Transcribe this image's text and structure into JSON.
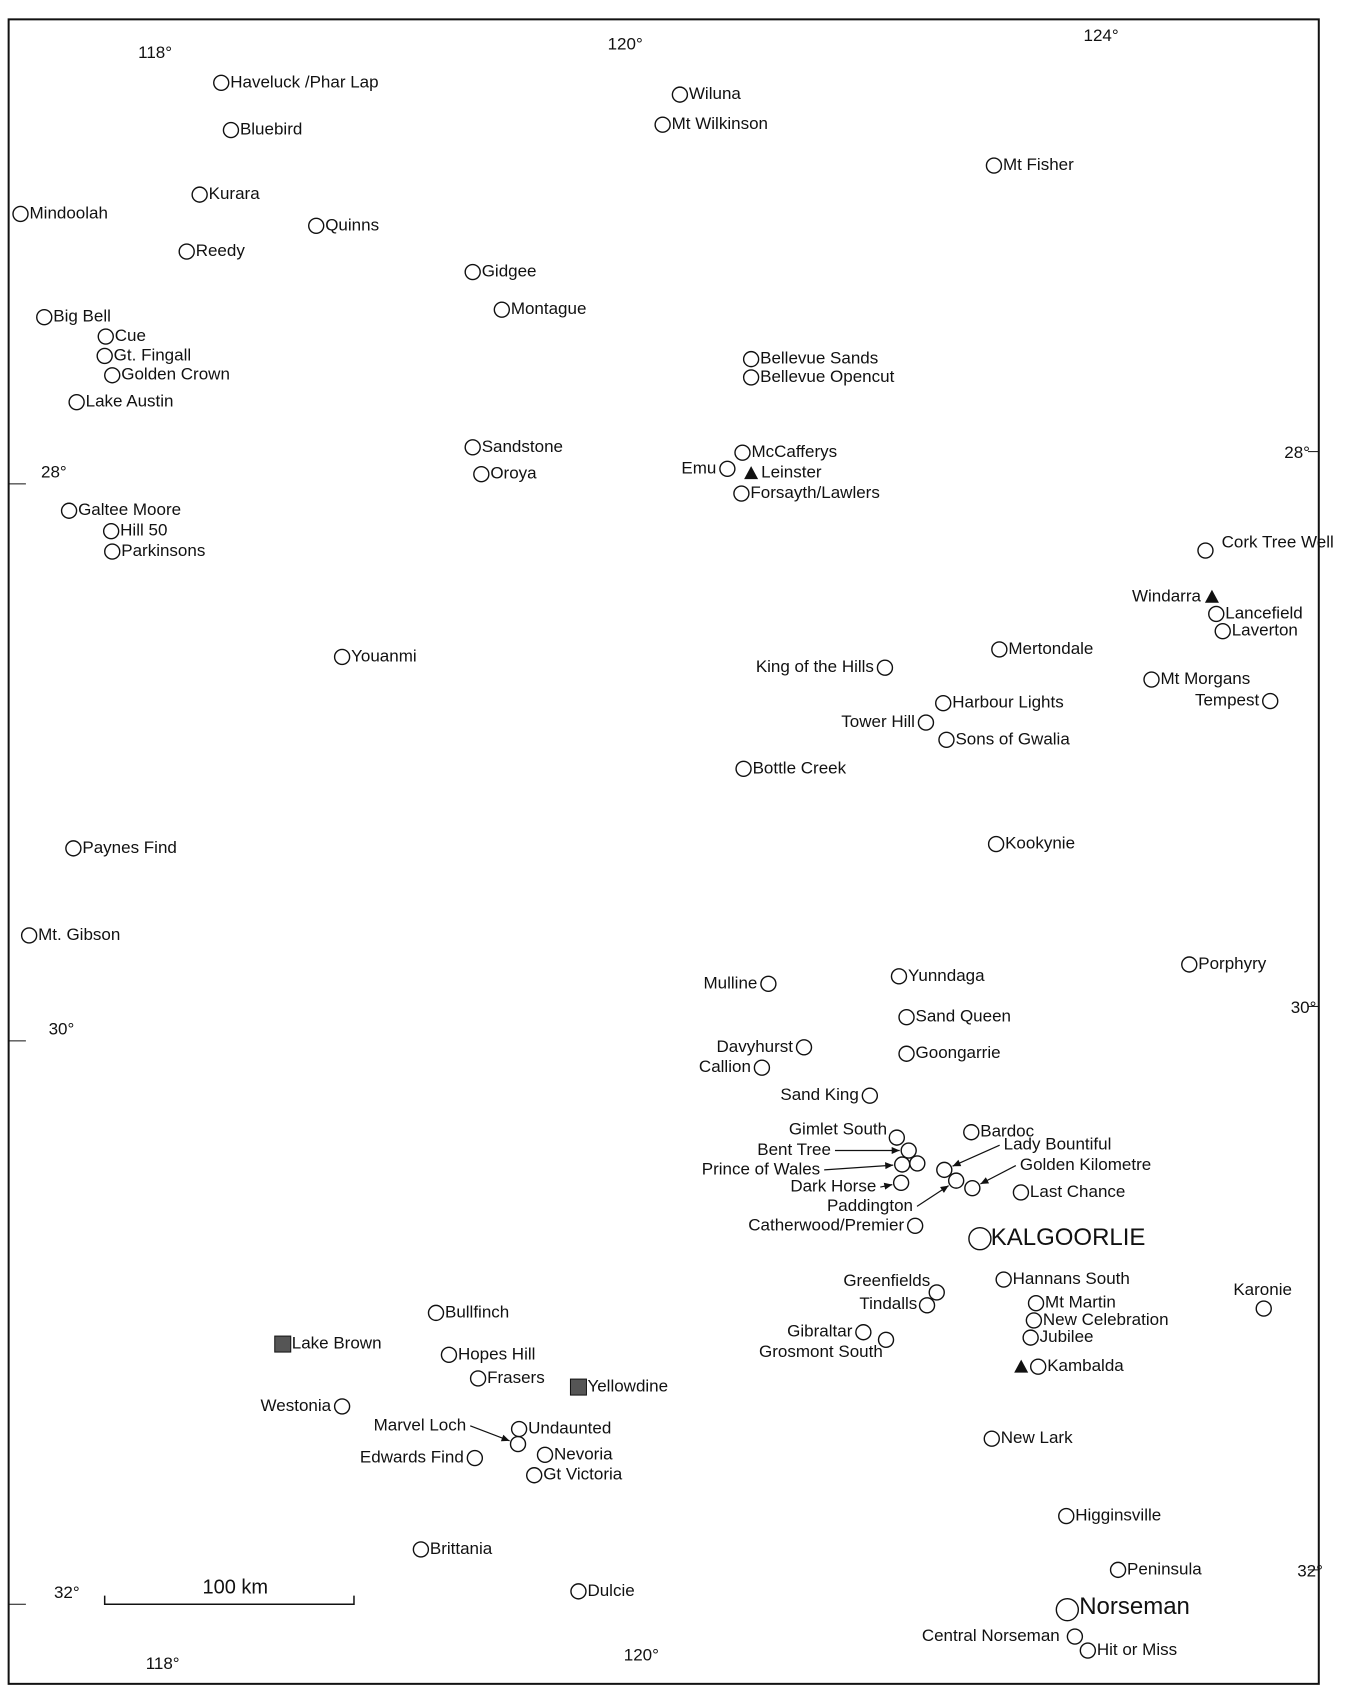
{
  "map": {
    "graticule_labels": [
      "118°",
      "120°",
      "124°",
      "28°",
      "28°",
      "30°",
      "30°",
      "32°",
      "32°",
      "118°",
      "120°"
    ],
    "scale_bar": "100 km",
    "places": [
      {
        "name": "Haveluck /Phar Lap"
      },
      {
        "name": "Bluebird"
      },
      {
        "name": "Kurara"
      },
      {
        "name": "Mindoolah"
      },
      {
        "name": "Quinns"
      },
      {
        "name": "Reedy"
      },
      {
        "name": "Gidgee"
      },
      {
        "name": "Montague"
      },
      {
        "name": "Big Bell"
      },
      {
        "name": "Cue"
      },
      {
        "name": "Gt. Fingall"
      },
      {
        "name": "Golden Crown"
      },
      {
        "name": "Lake Austin"
      },
      {
        "name": "Wiluna"
      },
      {
        "name": "Mt Wilkinson"
      },
      {
        "name": "Mt Fisher"
      },
      {
        "name": "Bellevue Sands"
      },
      {
        "name": "Bellevue Opencut"
      },
      {
        "name": "Sandstone"
      },
      {
        "name": "Oroya"
      },
      {
        "name": "McCafferys"
      },
      {
        "name": "Emu"
      },
      {
        "name": "Leinster"
      },
      {
        "name": "Forsayth/Lawlers"
      },
      {
        "name": "Galtee Moore"
      },
      {
        "name": "Hill 50"
      },
      {
        "name": "Parkinsons"
      },
      {
        "name": "Cork Tree Well"
      },
      {
        "name": "Windarra"
      },
      {
        "name": "Lancefield"
      },
      {
        "name": "Laverton"
      },
      {
        "name": "Youanmi"
      },
      {
        "name": "Mertondale"
      },
      {
        "name": "King of the Hills"
      },
      {
        "name": "Mt Morgans"
      },
      {
        "name": "Harbour Lights"
      },
      {
        "name": "Tempest"
      },
      {
        "name": "Tower Hill"
      },
      {
        "name": "Sons of Gwalia"
      },
      {
        "name": "Bottle Creek"
      },
      {
        "name": "Kookynie"
      },
      {
        "name": "Paynes Find"
      },
      {
        "name": "Mt. Gibson"
      },
      {
        "name": "Porphyry"
      },
      {
        "name": "Mulline"
      },
      {
        "name": "Yunndaga"
      },
      {
        "name": "Sand Queen"
      },
      {
        "name": "Davyhurst"
      },
      {
        "name": "Goongarrie"
      },
      {
        "name": "Callion"
      },
      {
        "name": "Sand King"
      },
      {
        "name": "Gimlet South"
      },
      {
        "name": "Bardoc"
      },
      {
        "name": "Bent Tree"
      },
      {
        "name": "Lady Bountiful"
      },
      {
        "name": "Prince of Wales"
      },
      {
        "name": "Golden Kilometre"
      },
      {
        "name": "Dark Horse"
      },
      {
        "name": "Paddington"
      },
      {
        "name": "Last Chance"
      },
      {
        "name": "Catherwood/Premier"
      },
      {
        "name": "KALGOORLIE"
      },
      {
        "name": "Hannans South"
      },
      {
        "name": "Greenfields"
      },
      {
        "name": "Tindalls"
      },
      {
        "name": "Karonie"
      },
      {
        "name": "Mt Martin"
      },
      {
        "name": "New Celebration"
      },
      {
        "name": "Bullfinch"
      },
      {
        "name": "Jubilee"
      },
      {
        "name": "Gibraltar"
      },
      {
        "name": "Grosmont South"
      },
      {
        "name": "Lake Brown"
      },
      {
        "name": "Hopes Hill"
      },
      {
        "name": "Kambalda"
      },
      {
        "name": "Frasers"
      },
      {
        "name": "Yellowdine"
      },
      {
        "name": "Westonia"
      },
      {
        "name": "Undaunted"
      },
      {
        "name": "Marvel Loch"
      },
      {
        "name": "New Lark"
      },
      {
        "name": "Nevoria"
      },
      {
        "name": "Edwards Find"
      },
      {
        "name": "Gt Victoria"
      },
      {
        "name": "Higginsville"
      },
      {
        "name": "Brittania"
      },
      {
        "name": "Peninsula"
      },
      {
        "name": "Dulcie"
      },
      {
        "name": "Norseman"
      },
      {
        "name": "Central Norseman"
      },
      {
        "name": "Hit or Miss"
      }
    ]
  }
}
